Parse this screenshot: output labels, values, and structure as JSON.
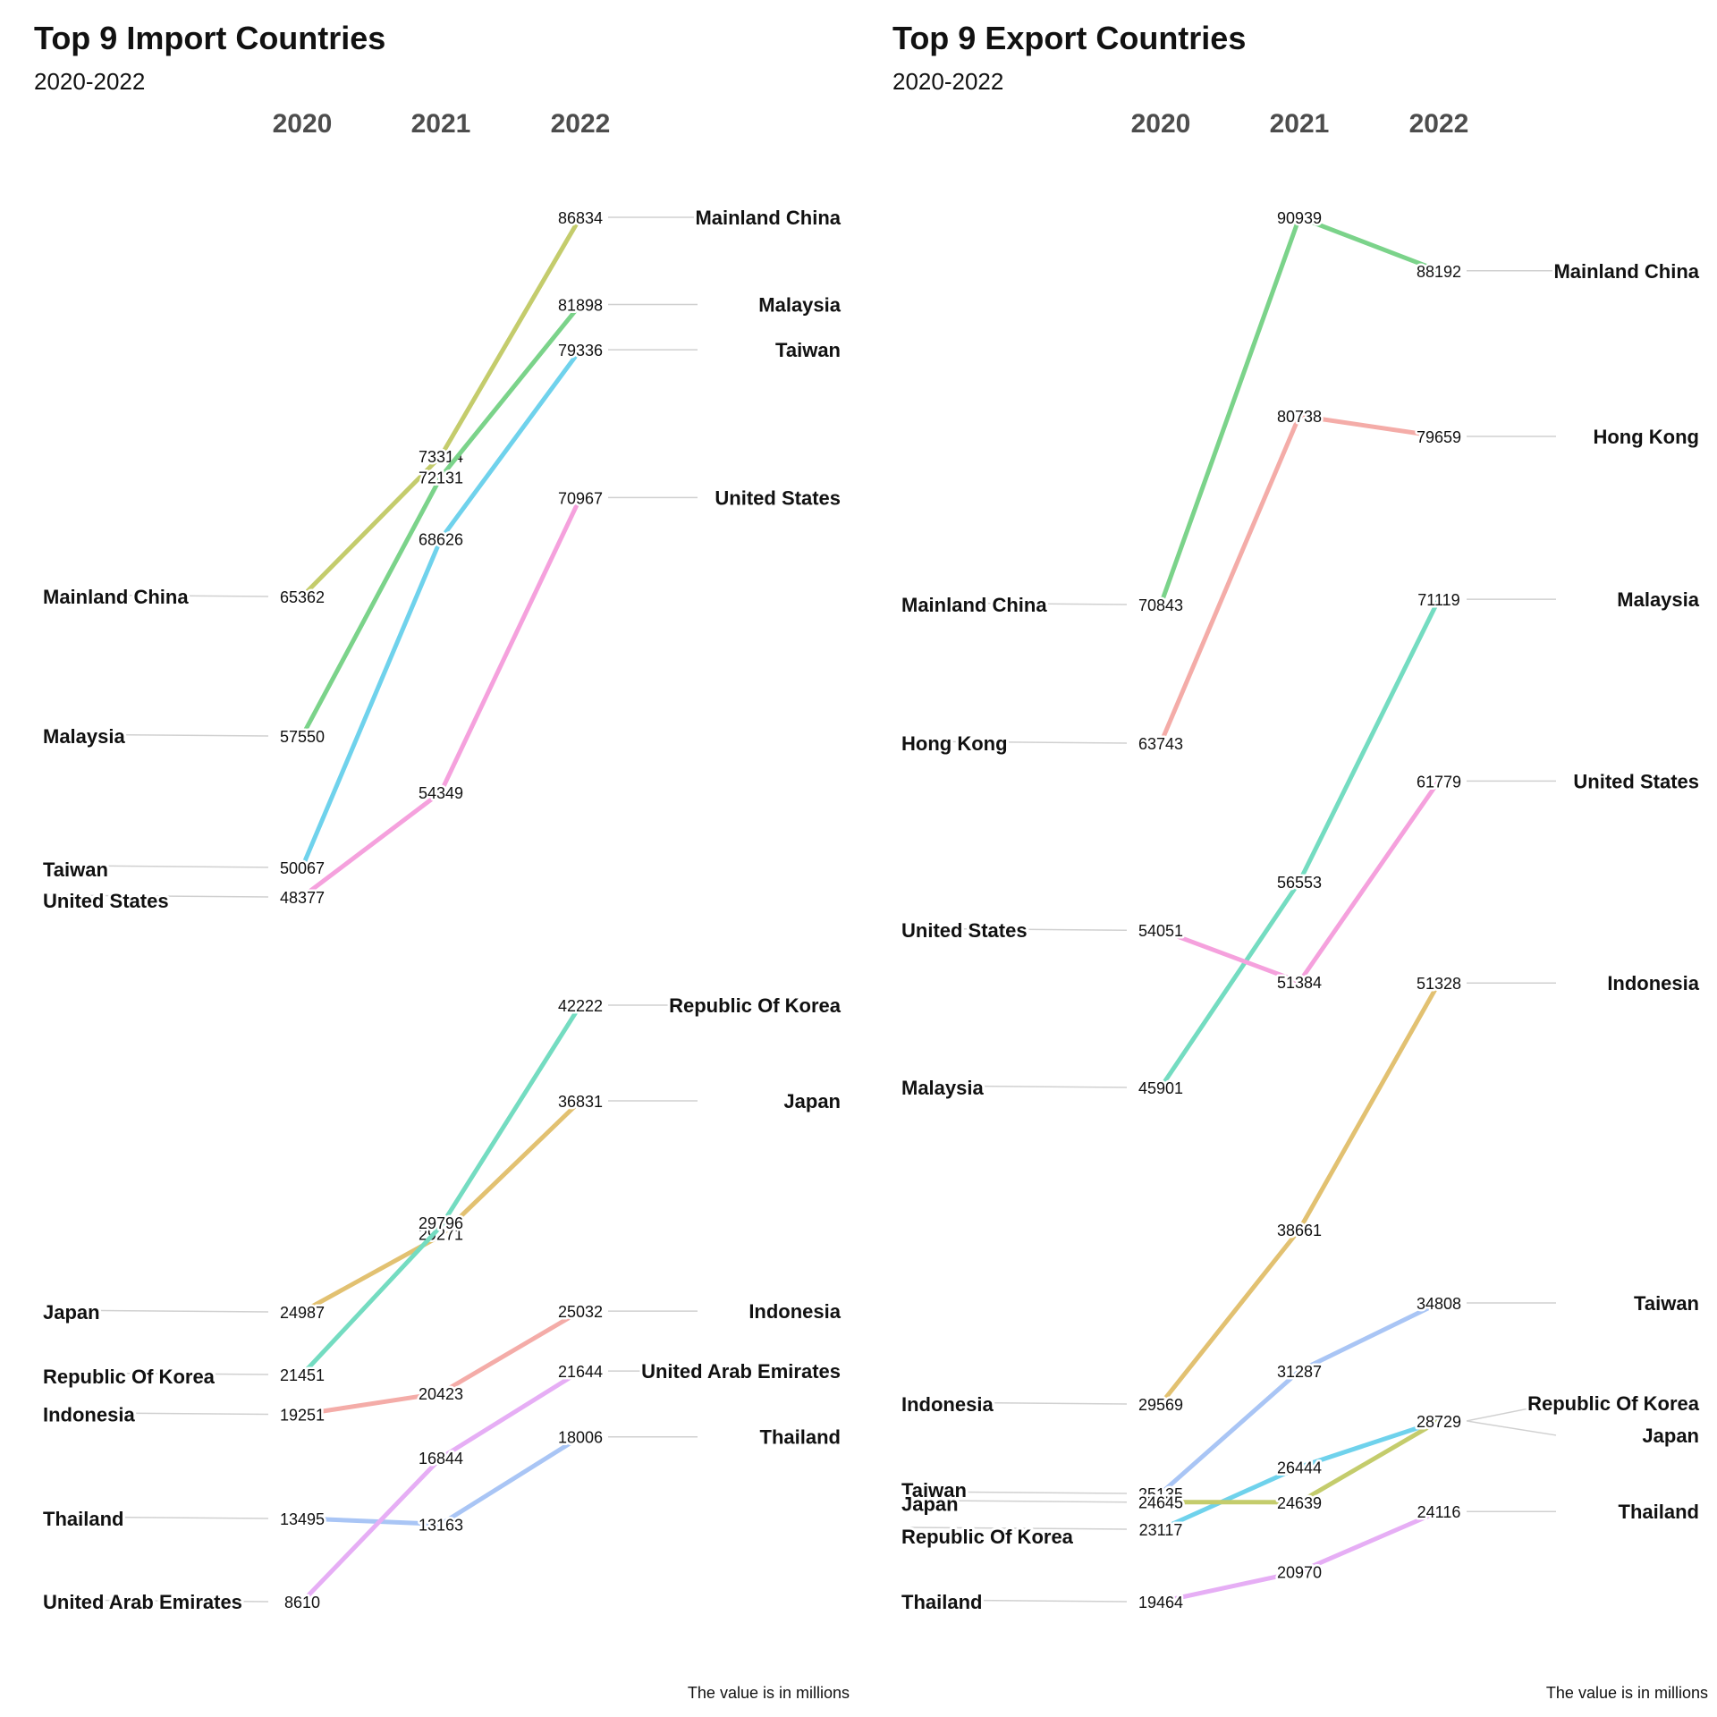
{
  "caption": "The value is in millions",
  "chart_data": [
    {
      "type": "line",
      "title": "Top 9 Import Countries",
      "subtitle": "2020-2022",
      "caption": "The value is in millions",
      "x": [
        "2020",
        "2021",
        "2022"
      ],
      "series": [
        {
          "name": "Mainland China",
          "values": [
            65362,
            73314,
            86834
          ],
          "color": "#c4cc6c"
        },
        {
          "name": "Malaysia",
          "values": [
            57550,
            72131,
            81898
          ],
          "color": "#7bd38a"
        },
        {
          "name": "Taiwan",
          "values": [
            50067,
            68626,
            79336
          ],
          "color": "#6fd2ec"
        },
        {
          "name": "United States",
          "values": [
            48377,
            54349,
            70967
          ],
          "color": "#f5a1dd"
        },
        {
          "name": "Japan",
          "values": [
            24987,
            29271,
            36831
          ],
          "color": "#e2c171"
        },
        {
          "name": "Republic Of Korea",
          "values": [
            21451,
            29796,
            42222
          ],
          "color": "#74dcc1"
        },
        {
          "name": "Indonesia",
          "values": [
            19251,
            20423,
            25032
          ],
          "color": "#f4aca8"
        },
        {
          "name": "Thailand",
          "values": [
            13495,
            13163,
            18006
          ],
          "color": "#a9c5f5"
        },
        {
          "name": "United Arab Emirates",
          "values": [
            8610,
            16844,
            21644
          ],
          "color": "#e6aef5"
        }
      ]
    },
    {
      "type": "line",
      "title": "Top 9 Export Countries",
      "subtitle": "2020-2022",
      "caption": "The value is in millions",
      "x": [
        "2020",
        "2021",
        "2022"
      ],
      "series": [
        {
          "name": "Mainland China",
          "values": [
            70843,
            90939,
            88192
          ],
          "color": "#7bd38a"
        },
        {
          "name": "Hong Kong",
          "values": [
            63743,
            80738,
            79659
          ],
          "color": "#f4aca8"
        },
        {
          "name": "Malaysia",
          "values": [
            45901,
            56553,
            71119
          ],
          "color": "#74dcc1"
        },
        {
          "name": "United States",
          "values": [
            54051,
            51384,
            61779
          ],
          "color": "#f5a1dd"
        },
        {
          "name": "Indonesia",
          "values": [
            29569,
            38661,
            51328
          ],
          "color": "#e2c171"
        },
        {
          "name": "Taiwan",
          "values": [
            25135,
            31287,
            34808
          ],
          "color": "#a9c5f5"
        },
        {
          "name": "Republic Of Korea",
          "values": [
            23117,
            26444,
            28729
          ],
          "color": "#6fd2ec"
        },
        {
          "name": "Japan",
          "values": [
            24645,
            24639,
            28729
          ],
          "color": "#c4cc6c"
        },
        {
          "name": "Thailand",
          "values": [
            19464,
            20970,
            24116
          ],
          "color": "#e6aef5"
        }
      ]
    }
  ]
}
